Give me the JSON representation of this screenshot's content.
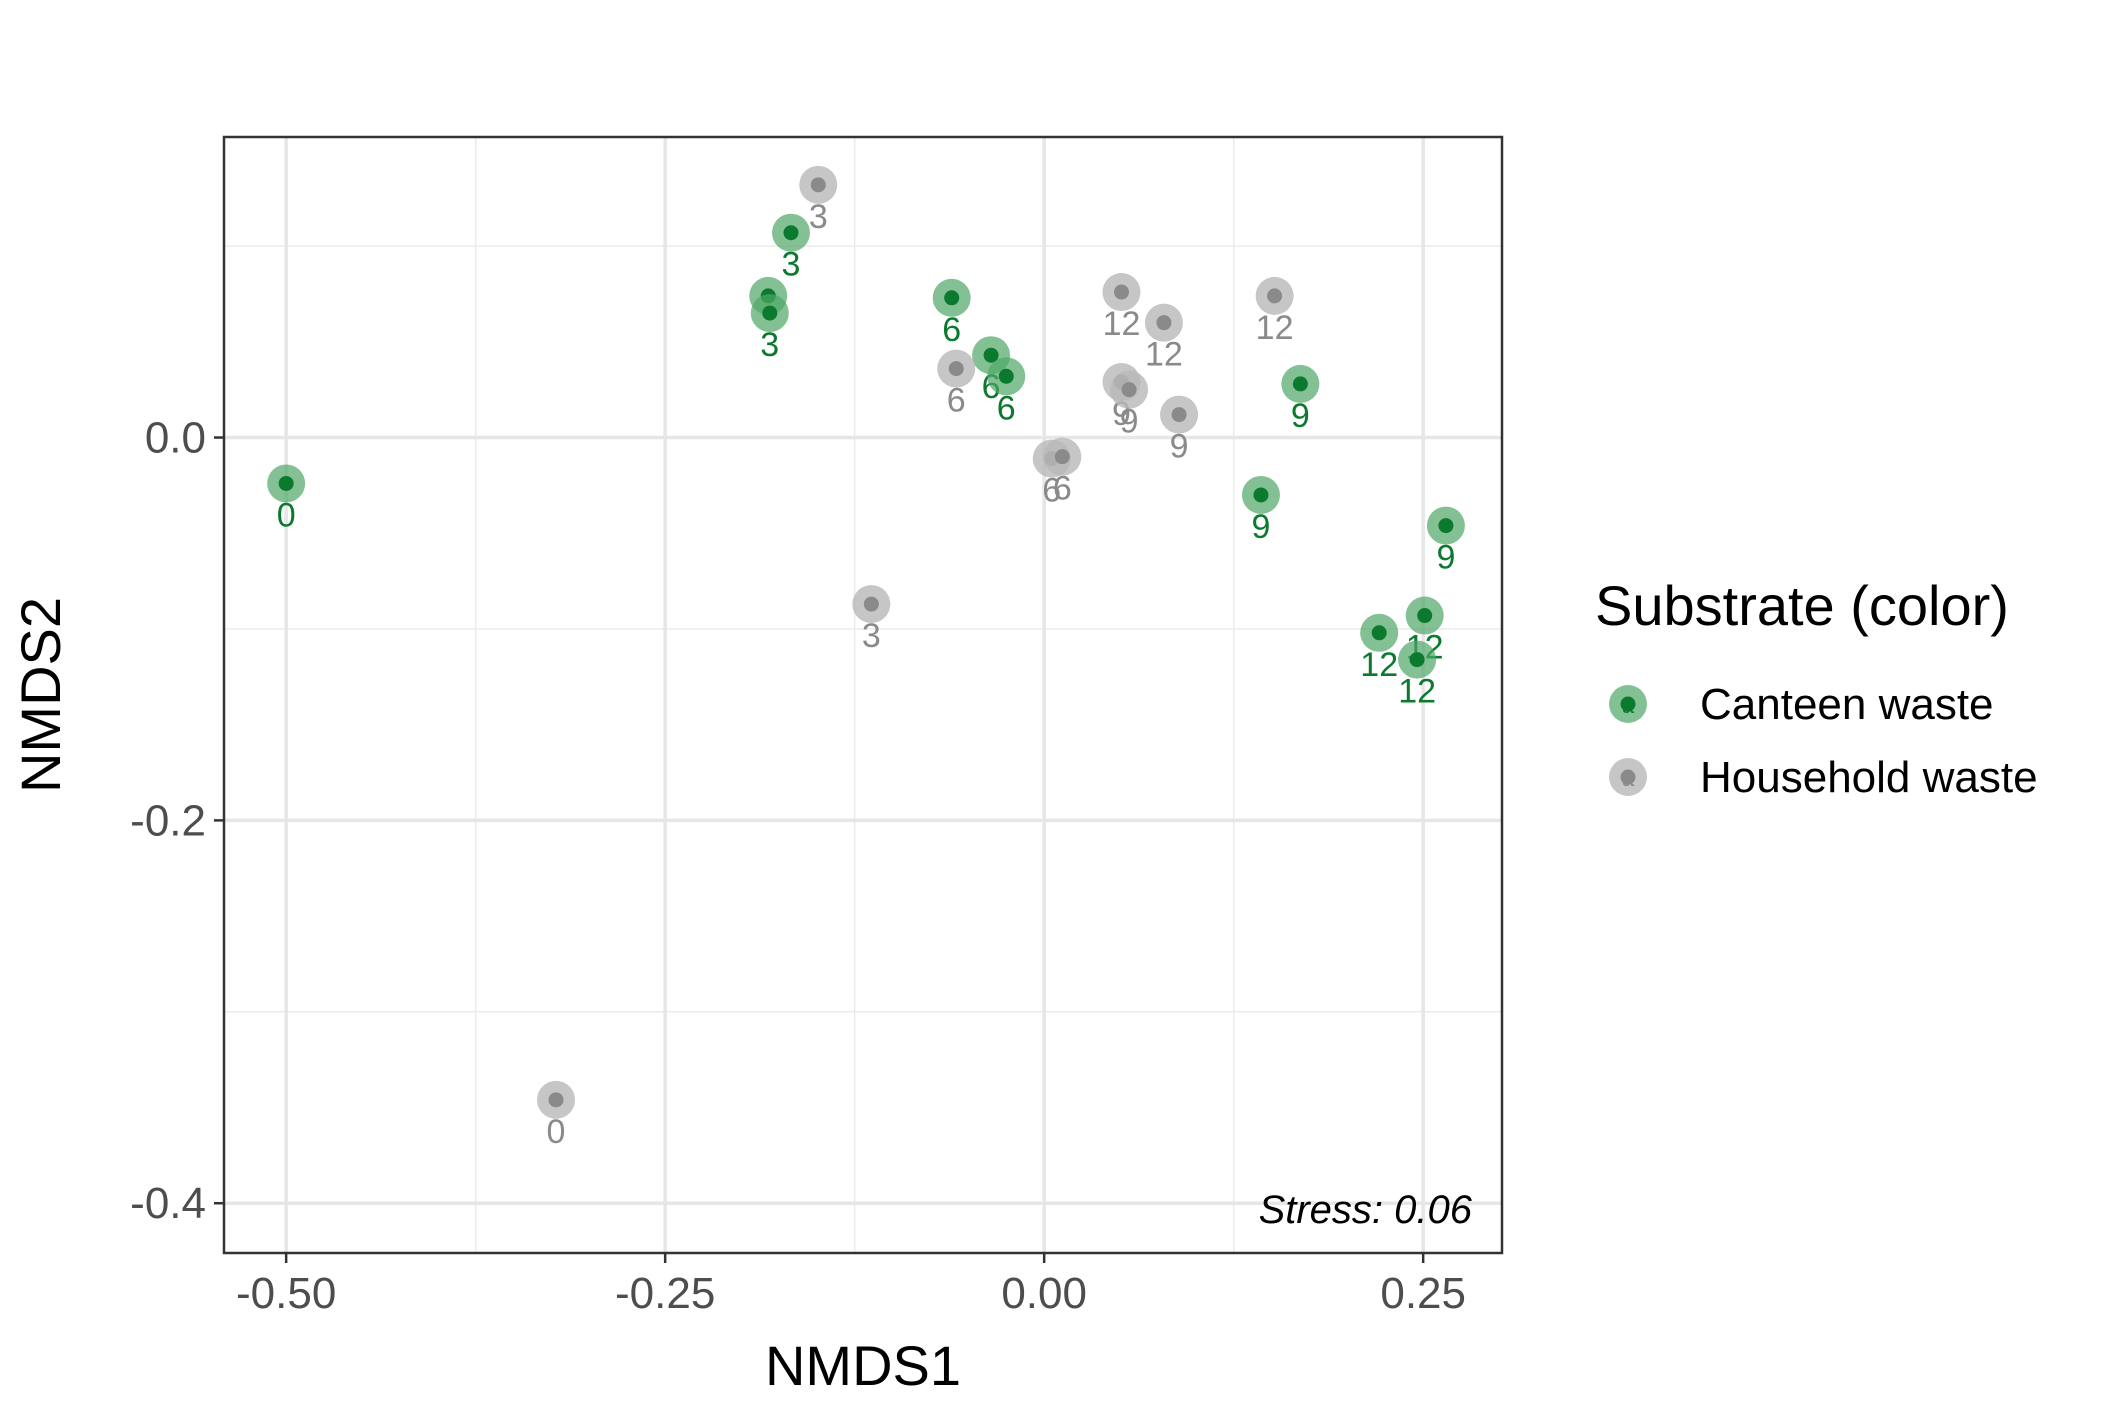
{
  "chart_data": {
    "type": "scatter",
    "xlabel": "NMDS1",
    "ylabel": "NMDS2",
    "xlim": [
      -0.541,
      0.302
    ],
    "ylim": [
      -0.426,
      0.157
    ],
    "x_ticks": [
      -0.5,
      -0.25,
      0.0,
      0.25
    ],
    "x_tick_labels": [
      "-0.50",
      "-0.25",
      "0.00",
      "0.25"
    ],
    "y_ticks": [
      0.0,
      -0.2,
      -0.4
    ],
    "y_tick_labels": [
      "0.0",
      "-0.2",
      "-0.4"
    ],
    "grid": true,
    "annotation": "Stress: 0.06",
    "legend": {
      "title": "Substrate (color)",
      "position": "right",
      "entries": [
        "Canteen waste",
        "Household waste"
      ]
    },
    "colors": {
      "Canteen waste": {
        "outer": "#4ea667",
        "inner": "#0c7a2e",
        "label": "#0c7a2e"
      },
      "Household waste": {
        "outer": "#b8b8b8",
        "inner": "#8a8a8a",
        "label": "#8a8a8a"
      }
    },
    "series": [
      {
        "name": "Canteen waste",
        "points": [
          {
            "x": -0.5,
            "y": -0.024,
            "label": "0"
          },
          {
            "x": -0.167,
            "y": 0.107,
            "label": "3"
          },
          {
            "x": -0.182,
            "y": 0.074,
            "label": ""
          },
          {
            "x": -0.181,
            "y": 0.065,
            "label": "3"
          },
          {
            "x": -0.061,
            "y": 0.073,
            "label": "6"
          },
          {
            "x": -0.035,
            "y": 0.043,
            "label": "6"
          },
          {
            "x": -0.025,
            "y": 0.032,
            "label": "6"
          },
          {
            "x": 0.169,
            "y": 0.028,
            "label": "9"
          },
          {
            "x": 0.143,
            "y": -0.03,
            "label": "9"
          },
          {
            "x": 0.265,
            "y": -0.046,
            "label": "9"
          },
          {
            "x": 0.221,
            "y": -0.102,
            "label": "12"
          },
          {
            "x": 0.251,
            "y": -0.093,
            "label": "12"
          },
          {
            "x": 0.246,
            "y": -0.116,
            "label": "12"
          }
        ]
      },
      {
        "name": "Household waste",
        "points": [
          {
            "x": -0.322,
            "y": -0.346,
            "label": "0"
          },
          {
            "x": -0.149,
            "y": 0.132,
            "label": "3"
          },
          {
            "x": -0.114,
            "y": -0.087,
            "label": "3"
          },
          {
            "x": -0.058,
            "y": 0.036,
            "label": "6"
          },
          {
            "x": 0.005,
            "y": -0.011,
            "label": "6"
          },
          {
            "x": 0.012,
            "y": -0.01,
            "label": "6"
          },
          {
            "x": 0.051,
            "y": 0.029,
            "label": "9"
          },
          {
            "x": 0.056,
            "y": 0.025,
            "label": "9"
          },
          {
            "x": 0.089,
            "y": 0.012,
            "label": "9"
          },
          {
            "x": 0.051,
            "y": 0.076,
            "label": "12"
          },
          {
            "x": 0.079,
            "y": 0.06,
            "label": "12"
          },
          {
            "x": 0.152,
            "y": 0.074,
            "label": "12"
          }
        ]
      }
    ]
  }
}
